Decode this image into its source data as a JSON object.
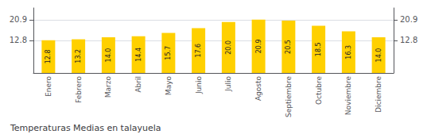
{
  "chart_data": {
    "type": "bar",
    "title": "Temperaturas Medias en talayuela",
    "categories": [
      "Enero",
      "Febrero",
      "Marzo",
      "Abril",
      "Mayo",
      "Junio",
      "Julio",
      "Agosto",
      "Septiembre",
      "Octubre",
      "Noviembre",
      "Diciembre"
    ],
    "values": [
      12.8,
      13.2,
      14.0,
      14.4,
      15.7,
      17.6,
      20.0,
      20.9,
      20.5,
      18.5,
      16.3,
      14.0
    ],
    "value_labels": [
      "12.8",
      "13.2",
      "14.0",
      "14.4",
      "15.7",
      "17.6",
      "20.0",
      "20.9",
      "20.5",
      "18.5",
      "16.3",
      "14.0"
    ],
    "data_labels": true,
    "color": "#FFD000",
    "ylim": [
      0,
      25.498
    ],
    "yticks": [
      12.8,
      20.9
    ],
    "y2lim": [
      0,
      25.498
    ],
    "y2ticks": [
      12.8,
      20.9
    ],
    "grid": true
  }
}
